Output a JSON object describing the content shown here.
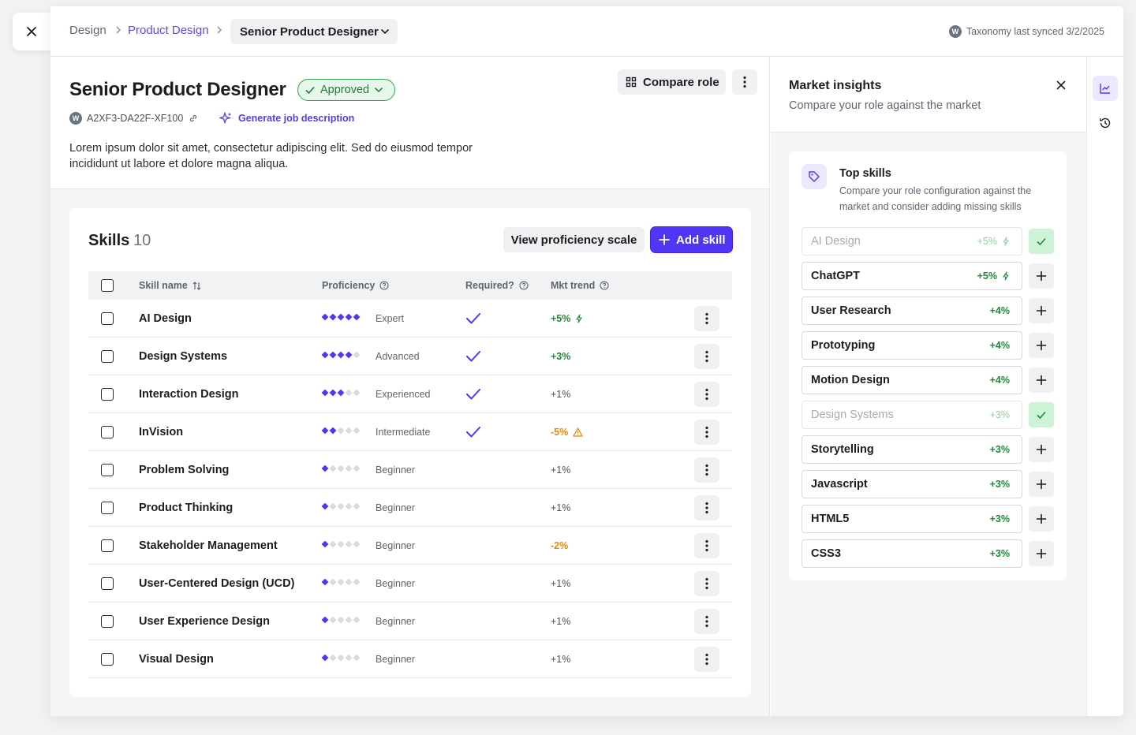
{
  "breadcrumb": {
    "items": [
      "Design",
      "Product Design"
    ],
    "current": "Senior Product Designer"
  },
  "sync": {
    "badge": "W",
    "text": "Taxonomy last synced 3/2/2025"
  },
  "role": {
    "title": "Senior Product Designer",
    "status": "Approved",
    "code": "A2XF3-DA22F-XF100",
    "generate_label": "Generate job description",
    "description": "Lorem ipsum dolor sit amet, consectetur adipiscing elit. Sed do eiusmod tempor incididunt ut labore et dolore magna aliqua."
  },
  "actions": {
    "compare_label": "Compare role"
  },
  "skills": {
    "title": "Skills",
    "count": "10",
    "view_scale_label": "View proficiency scale",
    "add_label": "Add skill",
    "columns": [
      "Skill name",
      "Proficiency",
      "Required?",
      "Mkt trend"
    ],
    "rows": [
      {
        "name": "AI Design",
        "level": 5,
        "level_label": "Expert",
        "required": true,
        "trend": "+5%",
        "trend_status": "up-strong"
      },
      {
        "name": "Design Systems",
        "level": 4,
        "level_label": "Advanced",
        "required": true,
        "trend": "+3%",
        "trend_status": "up"
      },
      {
        "name": "Interaction Design",
        "level": 3,
        "level_label": "Experienced",
        "required": true,
        "trend": "+1%",
        "trend_status": "neutral"
      },
      {
        "name": "InVision",
        "level": 2,
        "level_label": "Intermediate",
        "required": true,
        "trend": "-5%",
        "trend_status": "warning"
      },
      {
        "name": "Problem Solving",
        "level": 1,
        "level_label": "Beginner",
        "required": false,
        "trend": "+1%",
        "trend_status": "neutral"
      },
      {
        "name": "Product Thinking",
        "level": 1,
        "level_label": "Beginner",
        "required": false,
        "trend": "+1%",
        "trend_status": "neutral"
      },
      {
        "name": "Stakeholder Management",
        "level": 1,
        "level_label": "Beginner",
        "required": false,
        "trend": "-2%",
        "trend_status": "down"
      },
      {
        "name": "User-Centered Design (UCD)",
        "level": 1,
        "level_label": "Beginner",
        "required": false,
        "trend": "+1%",
        "trend_status": "neutral"
      },
      {
        "name": "User Experience Design",
        "level": 1,
        "level_label": "Beginner",
        "required": false,
        "trend": "+1%",
        "trend_status": "neutral"
      },
      {
        "name": "Visual Design",
        "level": 1,
        "level_label": "Beginner",
        "required": false,
        "trend": "+1%",
        "trend_status": "neutral"
      }
    ]
  },
  "insights": {
    "title": "Market insights",
    "subtitle": "Compare your role against the market",
    "top_skills_title": "Top skills",
    "top_skills_subtitle": "Compare your role configuration against the market and consider adding missing skills",
    "items": [
      {
        "name": "AI Design",
        "pct": "+5%",
        "hot": true,
        "added": true
      },
      {
        "name": "ChatGPT",
        "pct": "+5%",
        "hot": true,
        "added": false
      },
      {
        "name": "User Research",
        "pct": "+4%",
        "hot": false,
        "added": false
      },
      {
        "name": "Prototyping",
        "pct": "+4%",
        "hot": false,
        "added": false
      },
      {
        "name": "Motion Design",
        "pct": "+4%",
        "hot": false,
        "added": false
      },
      {
        "name": "Design Systems",
        "pct": "+3%",
        "hot": false,
        "added": true
      },
      {
        "name": "Storytelling",
        "pct": "+3%",
        "hot": false,
        "added": false
      },
      {
        "name": "Javascript",
        "pct": "+3%",
        "hot": false,
        "added": false
      },
      {
        "name": "HTML5",
        "pct": "+3%",
        "hot": false,
        "added": false
      },
      {
        "name": "CSS3",
        "pct": "+3%",
        "hot": false,
        "added": false
      }
    ]
  },
  "colors": {
    "accent": "#4f36f5",
    "positive": "#1e8b3a",
    "warning": "#e08a00",
    "dot_inactive": "#d9dbe0"
  }
}
